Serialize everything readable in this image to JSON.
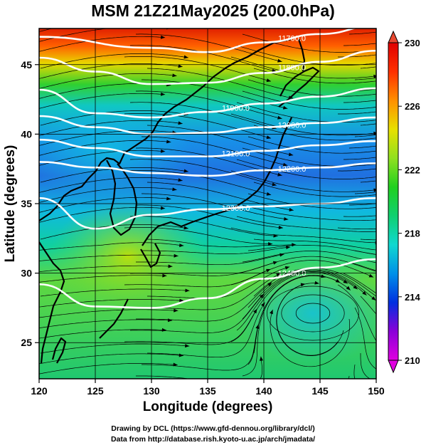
{
  "title": "MSM 21Z21May2025 (200.0hPa)",
  "xaxis": {
    "label": "Longitude (degrees)",
    "range": [
      120,
      150
    ],
    "ticks": [
      120,
      125,
      130,
      135,
      140,
      145,
      150
    ]
  },
  "yaxis": {
    "label": "Latitude  (degrees)",
    "range": [
      22.4,
      47.6
    ],
    "ticks": [
      25,
      30,
      35,
      40,
      45
    ]
  },
  "colorbar": {
    "ticks": [
      210,
      214,
      218,
      222,
      226,
      230
    ],
    "range": [
      210,
      230
    ],
    "colors": [
      "#e000e0",
      "#8a00d8",
      "#0030e0",
      "#0090e8",
      "#10d8d0",
      "#10d070",
      "#20d020",
      "#90e020",
      "#e8e000",
      "#ff9000",
      "#ff3000",
      "#e00000"
    ]
  },
  "contours": [
    {
      "label": "11700.0",
      "lat_at_lon": [
        [
          120,
          47.0
        ],
        [
          130,
          46.2
        ],
        [
          135,
          45.9
        ],
        [
          140,
          46.6
        ],
        [
          145,
          47.2
        ],
        [
          150,
          47.8
        ]
      ]
    },
    {
      "label": "11800.0",
      "lat_at_lon": [
        [
          120,
          45.5
        ],
        [
          125,
          44.5
        ],
        [
          130,
          43.6
        ],
        [
          135,
          43.7
        ],
        [
          140,
          44.4
        ],
        [
          145,
          45.2
        ],
        [
          150,
          46.0
        ]
      ]
    },
    {
      "label": "11900.0",
      "lat_at_lon": [
        [
          120,
          43.2
        ],
        [
          125,
          41.5
        ],
        [
          130,
          41.2
        ],
        [
          135,
          41.6
        ],
        [
          140,
          42.2
        ],
        [
          145,
          42.7
        ],
        [
          150,
          43.3
        ]
      ]
    },
    {
      "label": "12000.0",
      "lat_at_lon": [
        [
          120,
          41.3
        ],
        [
          125,
          40.5
        ],
        [
          130,
          40.0
        ],
        [
          135,
          40.1
        ],
        [
          140,
          40.5
        ],
        [
          145,
          40.8
        ],
        [
          150,
          41.2
        ]
      ]
    },
    {
      "label": "12100.0",
      "lat_at_lon": [
        [
          120,
          39.6
        ],
        [
          125,
          39.0
        ],
        [
          130,
          38.4
        ],
        [
          135,
          38.4
        ],
        [
          140,
          38.8
        ],
        [
          145,
          39.2
        ],
        [
          150,
          39.5
        ]
      ]
    },
    {
      "label": "12200.0",
      "lat_at_lon": [
        [
          120,
          38.0
        ],
        [
          125,
          37.6
        ],
        [
          130,
          37.2
        ],
        [
          135,
          37.0
        ],
        [
          140,
          37.4
        ],
        [
          145,
          37.6
        ],
        [
          150,
          37.9
        ]
      ]
    },
    {
      "label": "12300.0",
      "lat_at_lon": [
        [
          120,
          35.4
        ],
        [
          125,
          33.2
        ],
        [
          130,
          34.2
        ],
        [
          135,
          34.6
        ],
        [
          140,
          34.8
        ],
        [
          145,
          35.0
        ],
        [
          150,
          35.4
        ]
      ]
    },
    {
      "label": "12400.0",
      "lat_at_lon": [
        [
          120,
          29.2
        ],
        [
          125,
          27.6
        ],
        [
          130,
          27.5
        ],
        [
          135,
          28.2
        ],
        [
          140,
          29.6
        ],
        [
          145,
          30.4
        ],
        [
          150,
          31.0
        ]
      ]
    }
  ],
  "credits": [
    "Drawing by DCL (https://www.gfd-dennou.org/library/dcl/)",
    "Data from http://database.rish.kyoto-u.ac.jp/arch/jmadata/"
  ]
}
